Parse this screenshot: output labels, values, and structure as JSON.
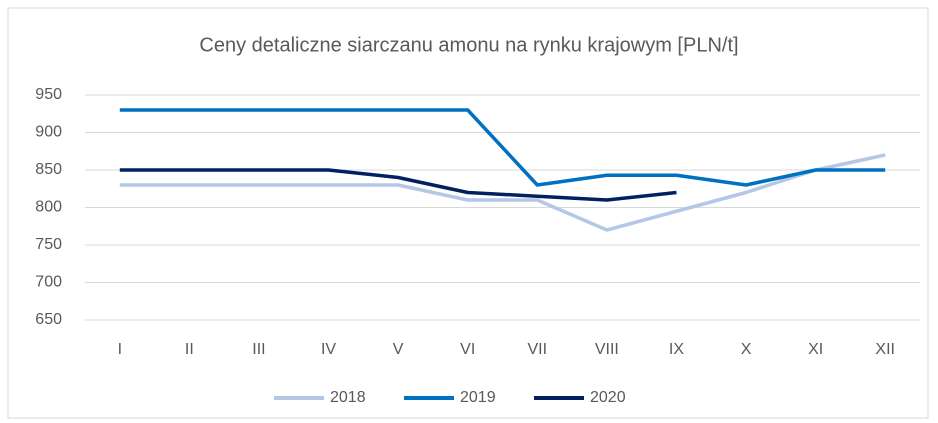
{
  "chart_data": {
    "type": "line",
    "title": "Ceny detaliczne siarczanu amonu na rynku krajowym [PLN/t]",
    "categories": [
      "I",
      "II",
      "III",
      "IV",
      "V",
      "VI",
      "VII",
      "VIII",
      "IX",
      "X",
      "XI",
      "XII"
    ],
    "series": [
      {
        "name": "2018",
        "color": "#b4c7e7",
        "values": [
          830,
          830,
          830,
          830,
          830,
          810,
          810,
          770,
          795,
          820,
          850,
          870
        ]
      },
      {
        "name": "2019",
        "color": "#0070c0",
        "values": [
          930,
          930,
          930,
          930,
          930,
          930,
          830,
          843,
          843,
          830,
          850,
          850
        ]
      },
      {
        "name": "2020",
        "color": "#002060",
        "values": [
          850,
          850,
          850,
          850,
          840,
          820,
          815,
          810,
          820,
          null,
          null,
          null
        ]
      }
    ],
    "ylim": [
      650,
      950
    ],
    "yticks": [
      650,
      700,
      750,
      800,
      850,
      900,
      950
    ],
    "grid": true,
    "legend": "bottom"
  }
}
